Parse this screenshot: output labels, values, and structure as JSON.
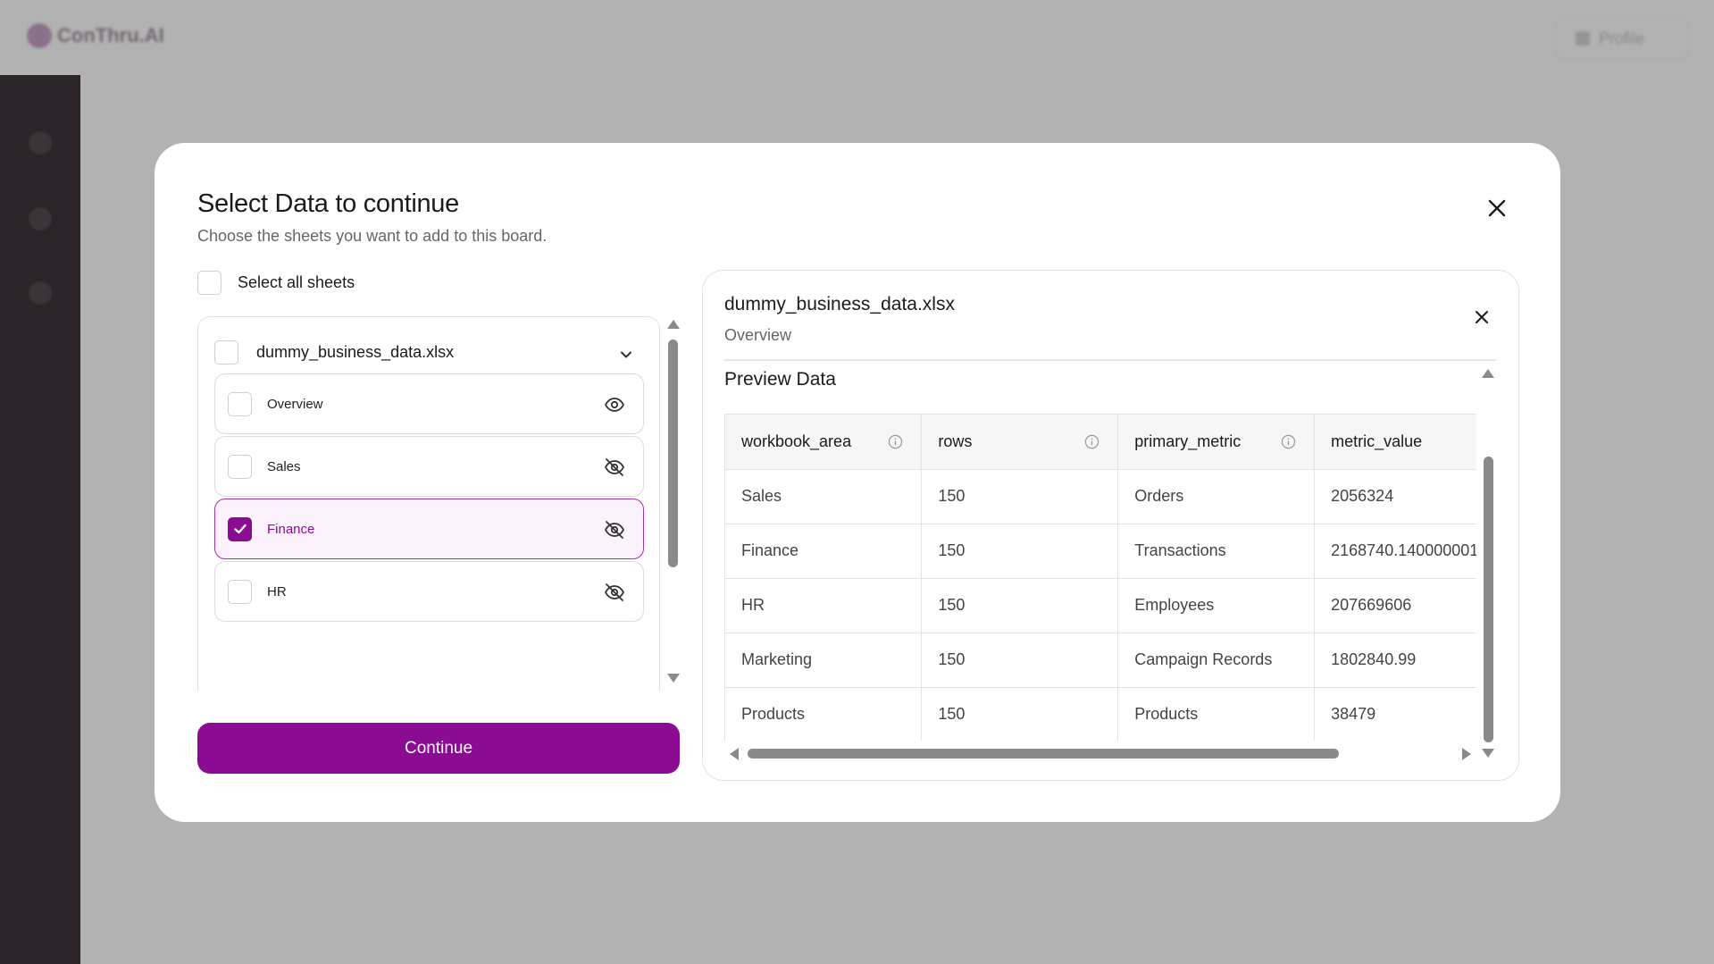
{
  "background": {
    "app_name": "ConThru.AI",
    "profile_label": "Profile"
  },
  "modal": {
    "title": "Select Data to continue",
    "subtitle": "Choose the sheets you want to add to this board.",
    "select_all_label": "Select all sheets",
    "select_all_checked": false,
    "file": {
      "name": "dummy_business_data.xlsx",
      "expanded": true,
      "sheets": [
        {
          "label": "Overview",
          "checked": false,
          "visible": true
        },
        {
          "label": "Sales",
          "checked": false,
          "visible": false
        },
        {
          "label": "Finance",
          "checked": true,
          "visible": false
        },
        {
          "label": "HR",
          "checked": false,
          "visible": false
        }
      ]
    },
    "continue_label": "Continue",
    "accent_color": "#8b0b93"
  },
  "preview": {
    "file_name": "dummy_business_data.xlsx",
    "sheet_name": "Overview",
    "section_label": "Preview Data",
    "columns": [
      "workbook_area",
      "rows",
      "primary_metric",
      "metric_value"
    ],
    "rows": [
      [
        "Sales",
        "150",
        "Orders",
        "2056324"
      ],
      [
        "Finance",
        "150",
        "Transactions",
        "2168740.140000001"
      ],
      [
        "HR",
        "150",
        "Employees",
        "207669606"
      ],
      [
        "Marketing",
        "150",
        "Campaign Records",
        "1802840.99"
      ],
      [
        "Products",
        "150",
        "Products",
        "38479"
      ]
    ]
  }
}
